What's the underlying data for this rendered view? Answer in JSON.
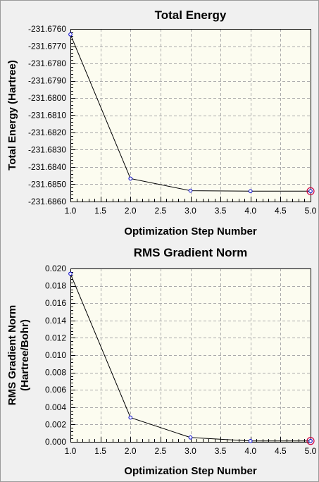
{
  "chart_data": [
    {
      "type": "line",
      "title": "Total Energy",
      "xlabel": "Optimization Step Number",
      "ylabel": "Total Energy (Hartree)",
      "ylabel_lines": [
        "Total Energy (Hartree)"
      ],
      "xlim": [
        1.0,
        5.0
      ],
      "ylim": [
        -231.686,
        -231.676
      ],
      "x_ticks": [
        1.0,
        1.5,
        2.0,
        2.5,
        3.0,
        3.5,
        4.0,
        4.5,
        5.0
      ],
      "x_tick_labels": [
        "1.0",
        "1.5",
        "2.0",
        "2.5",
        "3.0",
        "3.5",
        "4.0",
        "4.5",
        "5.0"
      ],
      "y_ticks": [
        -231.676,
        -231.677,
        -231.678,
        -231.679,
        -231.68,
        -231.681,
        -231.682,
        -231.683,
        -231.684,
        -231.685,
        -231.686
      ],
      "y_tick_labels": [
        "-231.6760",
        "-231.6770",
        "-231.6780",
        "-231.6790",
        "-231.6800",
        "-231.6810",
        "-231.6820",
        "-231.6830",
        "-231.6840",
        "-231.6850",
        "-231.6860"
      ],
      "grid": true,
      "series": [
        {
          "x": [
            1,
            2,
            3,
            4,
            5
          ],
          "values": [
            -231.67632,
            -231.68467,
            -231.68537,
            -231.6854,
            -231.6854
          ]
        }
      ],
      "highlight_index": 4,
      "colors": {
        "line": "#000000",
        "marker": "#0000cc",
        "highlight": "#cc0044",
        "plot_bg": "#fcfcf0",
        "grid": "#aaaaaa"
      }
    },
    {
      "type": "line",
      "title": "RMS Gradient Norm",
      "xlabel": "Optimization Step Number",
      "ylabel": "RMS Gradient Norm (Hartree/Bohr)",
      "ylabel_lines": [
        "RMS Gradient Norm",
        "(Hartree/Bohr)"
      ],
      "xlim": [
        1.0,
        5.0
      ],
      "ylim": [
        0.0,
        0.02
      ],
      "x_ticks": [
        1.0,
        1.5,
        2.0,
        2.5,
        3.0,
        3.5,
        4.0,
        4.5,
        5.0
      ],
      "x_tick_labels": [
        "1.0",
        "1.5",
        "2.0",
        "2.5",
        "3.0",
        "3.5",
        "4.0",
        "4.5",
        "5.0"
      ],
      "y_ticks": [
        0.02,
        0.018,
        0.016,
        0.014,
        0.012,
        0.01,
        0.008,
        0.006,
        0.004,
        0.002,
        0.0
      ],
      "y_tick_labels": [
        "0.020",
        "0.018",
        "0.016",
        "0.014",
        "0.012",
        "0.010",
        "0.008",
        "0.006",
        "0.004",
        "0.002",
        "0.000"
      ],
      "grid": true,
      "series": [
        {
          "x": [
            1,
            2,
            3,
            4,
            5
          ],
          "values": [
            0.0194,
            0.0028,
            0.0005,
            0.0001,
            0.0001
          ]
        }
      ],
      "highlight_index": 4,
      "colors": {
        "line": "#000000",
        "marker": "#0000cc",
        "highlight": "#cc0044",
        "plot_bg": "#fcfcf0",
        "grid": "#aaaaaa"
      }
    }
  ]
}
